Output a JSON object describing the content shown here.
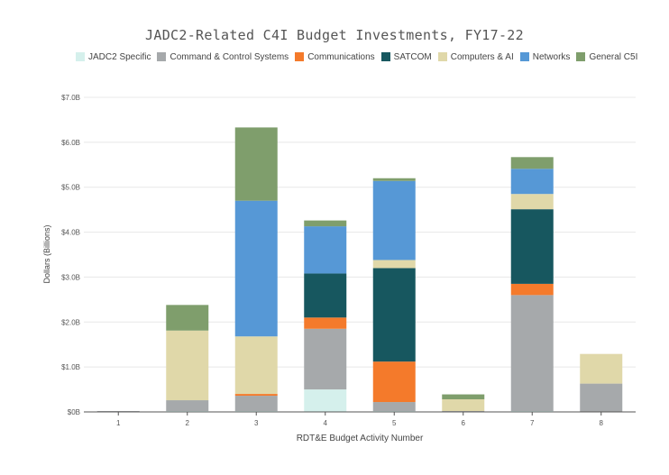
{
  "chart_data": {
    "type": "bar",
    "stacked": true,
    "title": "JADC2-Related C4I Budget Investments, FY17-22",
    "xlabel": "RDT&E Budget Activity Number",
    "ylabel": "Dollars (Billions)",
    "ylim": [
      0,
      7.0
    ],
    "yticks": [
      0,
      1,
      2,
      3,
      4,
      5,
      6,
      7
    ],
    "ytick_labels": [
      "$0B",
      "$1.0B",
      "$2.0B",
      "$3.0B",
      "$4.0B",
      "$5.0B",
      "$6.0B",
      "$7.0B"
    ],
    "grid": true,
    "legend_position": "top",
    "categories": [
      "1",
      "2",
      "3",
      "4",
      "5",
      "6",
      "7",
      "8"
    ],
    "series": [
      {
        "name": "JADC2 Specific",
        "color": "#d5f0ec",
        "values": [
          0,
          0.02,
          0.02,
          0.5,
          0.02,
          0,
          0.02,
          0
        ]
      },
      {
        "name": "Command & Control Systems",
        "color": "#a6a9ab",
        "values": [
          0.02,
          0.24,
          0.34,
          1.35,
          0.2,
          0.02,
          2.58,
          0.63
        ]
      },
      {
        "name": "Communications",
        "color": "#f47a2b",
        "values": [
          0,
          0,
          0.04,
          0.25,
          0.9,
          0,
          0.25,
          0
        ]
      },
      {
        "name": "SATCOM",
        "color": "#17575f",
        "values": [
          0,
          0,
          0,
          0.98,
          2.08,
          0,
          1.66,
          0
        ]
      },
      {
        "name": "Computers & AI",
        "color": "#e0d8a9",
        "values": [
          0,
          1.55,
          1.28,
          0,
          0.18,
          0.26,
          0.34,
          0.66
        ]
      },
      {
        "name": "Networks",
        "color": "#5698d6",
        "values": [
          0,
          0,
          3.02,
          1.05,
          1.76,
          0,
          0.56,
          0
        ]
      },
      {
        "name": "General C5I",
        "color": "#7f9e6c",
        "values": [
          0,
          0.57,
          1.63,
          0.13,
          0.06,
          0.11,
          0.26,
          0
        ]
      }
    ]
  }
}
